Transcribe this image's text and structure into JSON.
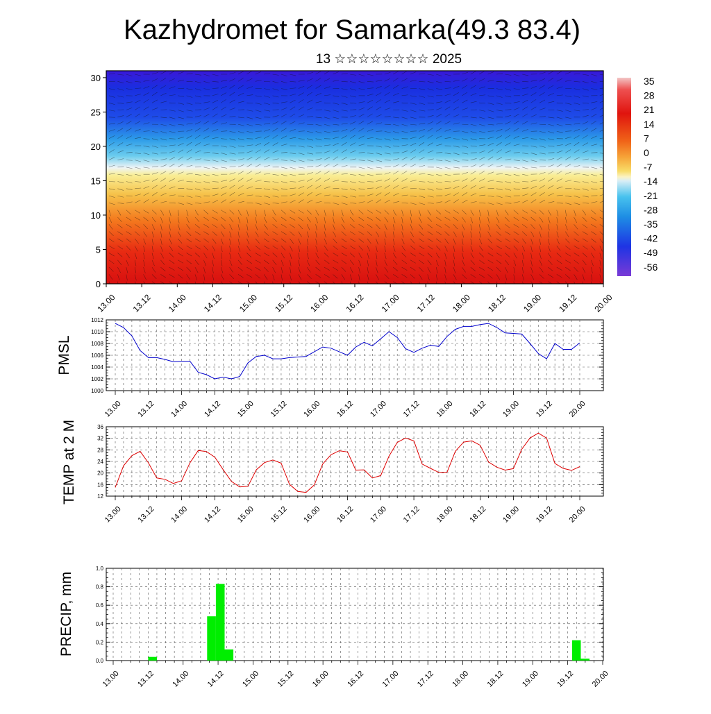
{
  "title": "Kazhydromet for Samarka(49.3 83.4)",
  "subtitle": "13 ☆☆☆☆☆☆☆☆ 2025",
  "time_labels": [
    "13.00",
    "13.12",
    "14.00",
    "14.12",
    "15.00",
    "15.12",
    "16.00",
    "16.12",
    "17.00",
    "17.12",
    "18.00",
    "18.12",
    "19.00",
    "19.12",
    "20.00"
  ],
  "chart_data": [
    {
      "type": "heatmap",
      "ylim": [
        0,
        31
      ],
      "yticks": [
        "0",
        "5",
        "10",
        "15",
        "20",
        "25",
        "30"
      ],
      "colorbar": {
        "labels": [
          "35",
          "28",
          "21",
          "14",
          "7",
          "0",
          "-7",
          "-14",
          "-21",
          "-28",
          "-35",
          "-42",
          "-49",
          "-56"
        ],
        "colors": {
          "top": "#f2c6c6",
          "warm_red": "#e8140f",
          "orange": "#f5781e",
          "yellow": "#f7e070",
          "pale": "#eef4f6",
          "cyan": "#2ab6ea",
          "blue": "#1e3ce6",
          "purple": "#7a3ad6"
        }
      }
    },
    {
      "type": "line",
      "ylabel": "PMSL",
      "ylim": [
        1000,
        1012
      ],
      "yticks": [
        "1000",
        "1002",
        "1004",
        "1006",
        "1008",
        "1010",
        "1012"
      ],
      "color": "#0000cc",
      "values": [
        1011.4,
        1010.7,
        1009.3,
        1006.8,
        1005.6,
        1005.6,
        1005.3,
        1004.9,
        1005.0,
        1005.0,
        1003.1,
        1002.7,
        1002.0,
        1002.3,
        1002.0,
        1002.4,
        1004.7,
        1005.8,
        1006.0,
        1005.4,
        1005.4,
        1005.6,
        1005.7,
        1005.8,
        1006.6,
        1007.4,
        1007.2,
        1006.6,
        1006.0,
        1007.4,
        1008.2,
        1007.6,
        1008.8,
        1010.0,
        1009.0,
        1007.1,
        1006.5,
        1007.2,
        1007.7,
        1007.5,
        1009.2,
        1010.4,
        1010.9,
        1010.9,
        1011.2,
        1011.4,
        1010.7,
        1009.8,
        1009.7,
        1009.6,
        1008.0,
        1006.3,
        1005.4,
        1008.0,
        1007.0,
        1007.0,
        1008.1
      ]
    },
    {
      "type": "line",
      "ylabel": "TEMP at 2 M",
      "ylim": [
        12,
        36
      ],
      "yticks": [
        "12",
        "16",
        "20",
        "24",
        "28",
        "32",
        "36"
      ],
      "color": "#dd0000",
      "values": [
        15,
        22.5,
        26,
        27.5,
        23.5,
        18.3,
        17.8,
        16.4,
        17.3,
        23.5,
        27.8,
        27.4,
        25.5,
        21.2,
        17.1,
        15.2,
        15.4,
        21.1,
        23.6,
        24.5,
        23.4,
        16.1,
        13.6,
        13.3,
        15.9,
        23.1,
        26.3,
        27.7,
        27.3,
        21.0,
        21.1,
        18.3,
        19.1,
        25.8,
        30.6,
        32.1,
        31.1,
        23.1,
        21.6,
        20.2,
        20.3,
        27.5,
        30.7,
        31.1,
        29.6,
        23.8,
        22.0,
        21.0,
        21.5,
        28.2,
        32.1,
        33.8,
        32.1,
        23.3,
        21.6,
        20.9,
        22.2
      ]
    },
    {
      "type": "bar",
      "ylabel": "PRECIP, mm",
      "ylim": [
        0,
        1.0
      ],
      "yticks": [
        "0.0",
        "0.2",
        "0.4",
        "0.6",
        "0.8",
        "1.0"
      ],
      "color": "#00ee00",
      "bars": [
        {
          "x": 4.5,
          "value": 0.04
        },
        {
          "x": 11.25,
          "value": 0.48
        },
        {
          "x": 12.25,
          "value": 0.83
        },
        {
          "x": 13.25,
          "value": 0.12
        },
        {
          "x": 53.0,
          "value": 0.22
        },
        {
          "x": 54.0,
          "value": 0.02
        }
      ]
    }
  ]
}
